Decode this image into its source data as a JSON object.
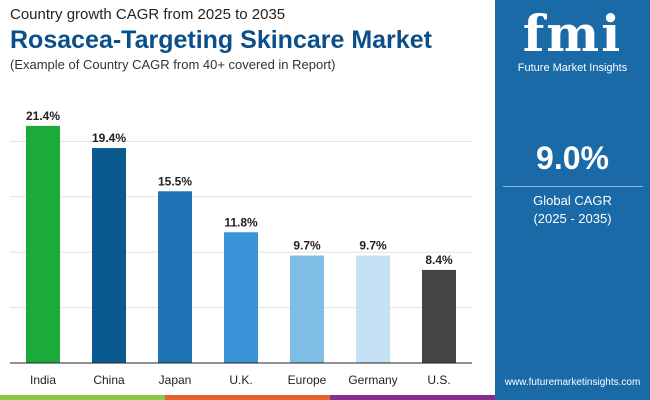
{
  "header": {
    "subtitle_top": "Country growth CAGR from 2025 to 2035",
    "title": "Rosacea-Targeting Skincare Market",
    "note": "(Example of Country CAGR from 40+ covered in Report)"
  },
  "panel": {
    "logo_text": "fmi",
    "brand": "Future Market Insights",
    "value": "9.0%",
    "label": "Global CAGR",
    "period": "(2025 - 2035)",
    "url": "www.futuremarketinsights.com"
  },
  "colors": {
    "panel": "#1a6aa8",
    "strip": [
      "#8dc641",
      "#e8602c",
      "#8a2d8c"
    ]
  },
  "chart_data": {
    "type": "bar",
    "categories": [
      "India",
      "China",
      "Japan",
      "U.K.",
      "Europe",
      "Germany",
      "U.S."
    ],
    "values": [
      21.4,
      19.4,
      15.5,
      11.8,
      9.7,
      9.7,
      8.4
    ],
    "labels": [
      "21.4%",
      "19.4%",
      "15.5%",
      "11.8%",
      "9.7%",
      "9.7%",
      "8.4%"
    ],
    "colors": [
      "#1aab3a",
      "#0b5a8f",
      "#1f74b5",
      "#3a94d8",
      "#7dbde6",
      "#c4e2f4",
      "#444444"
    ],
    "ylim": [
      0,
      25
    ],
    "grid": true,
    "gridstep": 5,
    "legend": "none"
  }
}
